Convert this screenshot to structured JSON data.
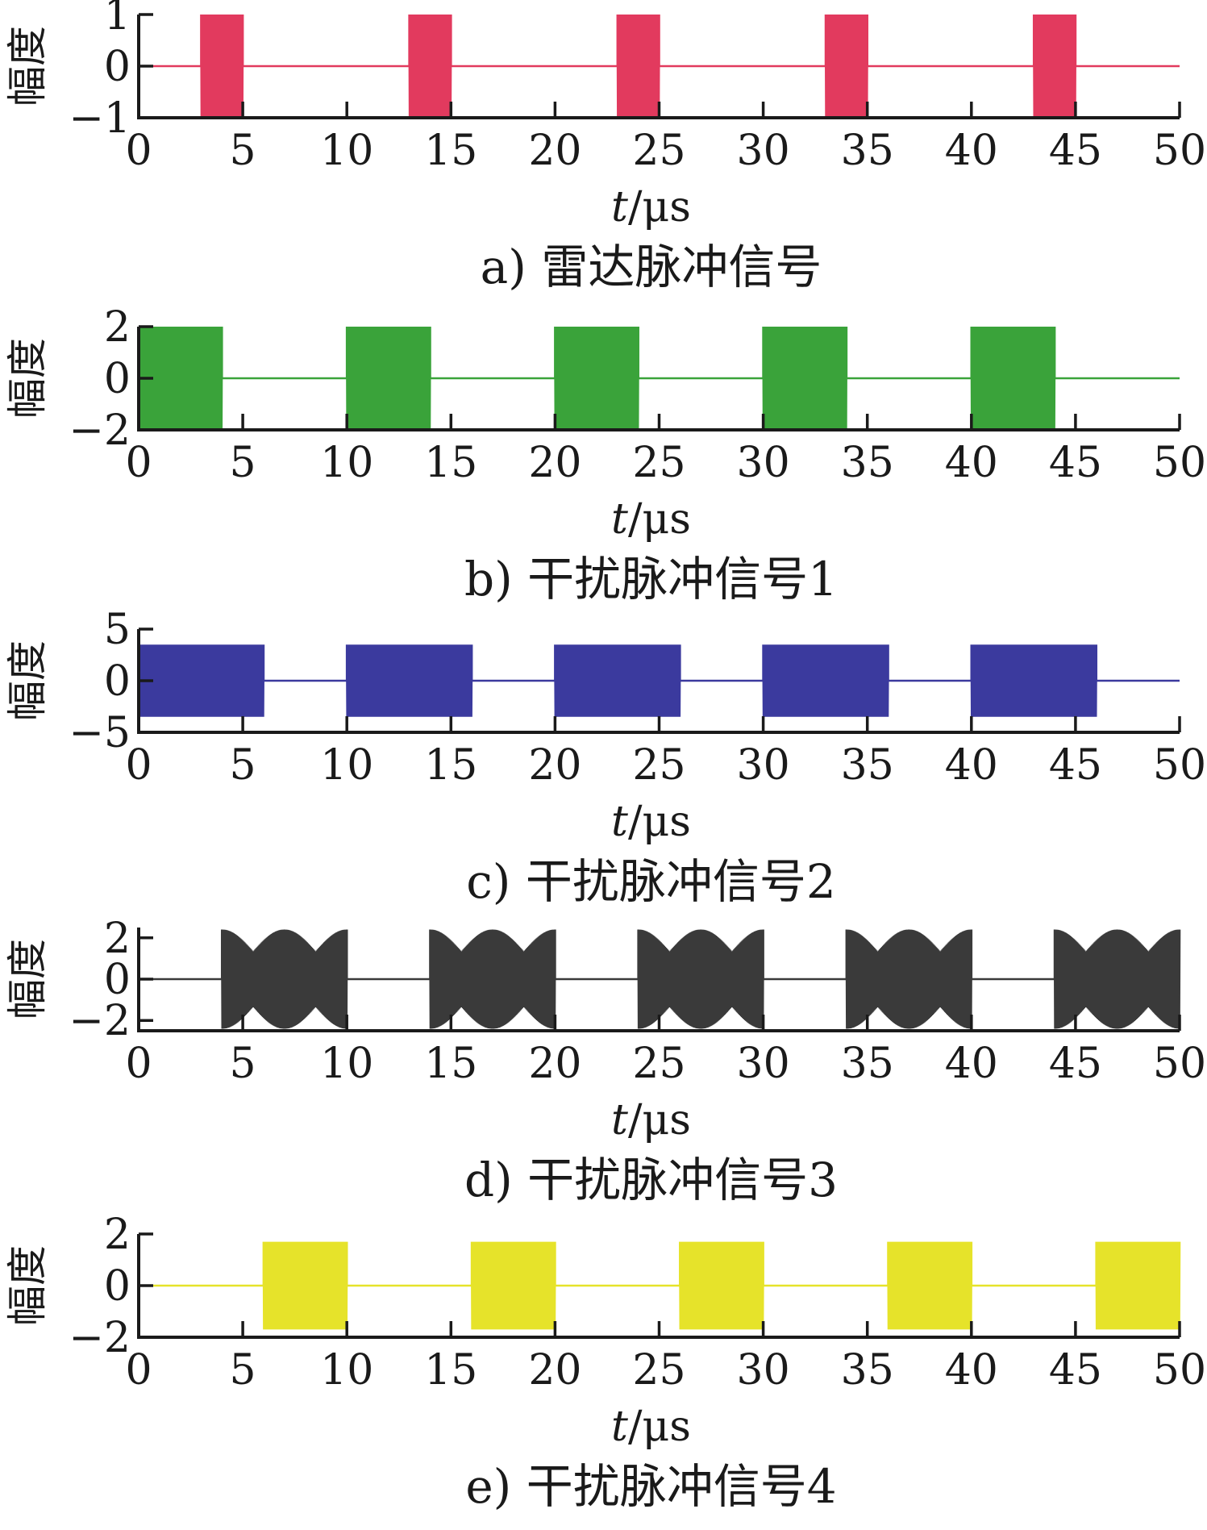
{
  "chart_data": [
    {
      "type": "line",
      "caption": "a) 雷达脉冲信号",
      "xlabel_var": "t",
      "xlabel_unit": "/μs",
      "ylabel": "幅度",
      "xlim": [
        0,
        50
      ],
      "ylim": [
        -1,
        1
      ],
      "xticks": [
        "0",
        "5",
        "10",
        "15",
        "20",
        "25",
        "30",
        "35",
        "40",
        "45",
        "50"
      ],
      "yticks": [
        "1",
        "0",
        "−1"
      ],
      "ytick_values": [
        1,
        0,
        -1
      ],
      "color": "#e23a5e",
      "amplitude": 1,
      "pulses": [
        [
          3,
          5
        ],
        [
          13,
          15
        ],
        [
          23,
          25
        ],
        [
          33,
          35
        ],
        [
          43,
          45
        ]
      ],
      "series": [
        {
          "values": []
        }
      ]
    },
    {
      "type": "line",
      "caption": "b) 干扰脉冲信号1",
      "xlabel_var": "t",
      "xlabel_unit": "/μs",
      "ylabel": "幅度",
      "xlim": [
        0,
        50
      ],
      "ylim": [
        -2,
        2
      ],
      "xticks": [
        "0",
        "5",
        "10",
        "15",
        "20",
        "25",
        "30",
        "35",
        "40",
        "45",
        "50"
      ],
      "yticks": [
        "2",
        "0",
        "−2"
      ],
      "ytick_values": [
        2,
        0,
        -2
      ],
      "color": "#3aa33a",
      "amplitude": 2,
      "pulses": [
        [
          0,
          4
        ],
        [
          10,
          14
        ],
        [
          20,
          24
        ],
        [
          30,
          34
        ],
        [
          40,
          44
        ]
      ],
      "series": [
        {
          "values": []
        }
      ]
    },
    {
      "type": "line",
      "caption": "c) 干扰脉冲信号2",
      "xlabel_var": "t",
      "xlabel_unit": "/μs",
      "ylabel": "幅度",
      "xlim": [
        0,
        50
      ],
      "ylim": [
        -5,
        5
      ],
      "xticks": [
        "0",
        "5",
        "10",
        "15",
        "20",
        "25",
        "30",
        "35",
        "40",
        "45",
        "50"
      ],
      "yticks": [
        "5",
        "0",
        "−5"
      ],
      "ytick_values": [
        5,
        0,
        -5
      ],
      "color": "#3b3a9e",
      "amplitude": 3.5,
      "pulses": [
        [
          0,
          6
        ],
        [
          10,
          16
        ],
        [
          20,
          26
        ],
        [
          30,
          36
        ],
        [
          40,
          46
        ]
      ],
      "series": [
        {
          "values": []
        }
      ]
    },
    {
      "type": "line",
      "caption": "d) 干扰脉冲信号3",
      "xlabel_var": "t",
      "xlabel_unit": "/μs",
      "ylabel": "幅度",
      "xlim": [
        0,
        50
      ],
      "ylim": [
        -2.5,
        2.5
      ],
      "xticks": [
        "0",
        "5",
        "10",
        "15",
        "20",
        "25",
        "30",
        "35",
        "40",
        "45",
        "50"
      ],
      "yticks": [
        "2",
        "0",
        "−2"
      ],
      "ytick_values": [
        2,
        0,
        -2
      ],
      "color": "#3a3a3a",
      "amplitude": 2.4,
      "pulses": [
        [
          4,
          10
        ],
        [
          14,
          20
        ],
        [
          24,
          30
        ],
        [
          34,
          40
        ],
        [
          44,
          50
        ]
      ],
      "series": [
        {
          "values": []
        }
      ]
    },
    {
      "type": "line",
      "caption": "e) 干扰脉冲信号4",
      "xlabel_var": "t",
      "xlabel_unit": "/μs",
      "ylabel": "幅度",
      "xlim": [
        0,
        50
      ],
      "ylim": [
        -2,
        2
      ],
      "xticks": [
        "0",
        "5",
        "10",
        "15",
        "20",
        "25",
        "30",
        "35",
        "40",
        "45",
        "50"
      ],
      "yticks": [
        "2",
        "0",
        "−2"
      ],
      "ytick_values": [
        2,
        0,
        -2
      ],
      "color": "#e6e32a",
      "amplitude": 1.7,
      "pulses": [
        [
          6,
          10
        ],
        [
          16,
          20
        ],
        [
          26,
          30
        ],
        [
          36,
          40
        ],
        [
          46,
          50
        ]
      ],
      "series": [
        {
          "values": []
        }
      ]
    }
  ]
}
